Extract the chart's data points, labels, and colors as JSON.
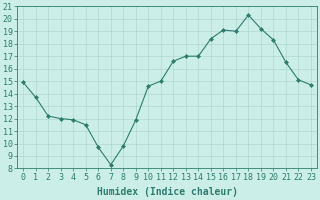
{
  "x": [
    0,
    1,
    2,
    3,
    4,
    5,
    6,
    7,
    8,
    9,
    10,
    11,
    12,
    13,
    14,
    15,
    16,
    17,
    18,
    19,
    20,
    21,
    22,
    23
  ],
  "y": [
    14.9,
    13.7,
    12.2,
    12.0,
    11.9,
    11.5,
    9.7,
    8.3,
    9.8,
    11.9,
    14.6,
    15.0,
    16.6,
    17.0,
    17.0,
    18.4,
    19.1,
    19.0,
    20.3,
    19.2,
    18.3,
    16.5,
    15.1,
    14.7
  ],
  "xlim": [
    -0.5,
    23.5
  ],
  "ylim": [
    8,
    21
  ],
  "yticks": [
    8,
    9,
    10,
    11,
    12,
    13,
    14,
    15,
    16,
    17,
    18,
    19,
    20,
    21
  ],
  "xticks": [
    0,
    1,
    2,
    3,
    4,
    5,
    6,
    7,
    8,
    9,
    10,
    11,
    12,
    13,
    14,
    15,
    16,
    17,
    18,
    19,
    20,
    21,
    22,
    23
  ],
  "xlabel": "Humidex (Indice chaleur)",
  "line_color": "#2e7d6e",
  "marker": "D",
  "marker_size": 2,
  "background_color": "#cceee8",
  "grid_color": "#b0d8d0",
  "tick_color": "#2e7d6e",
  "label_color": "#2e7d6e",
  "xlabel_fontsize": 7,
  "tick_fontsize": 6
}
